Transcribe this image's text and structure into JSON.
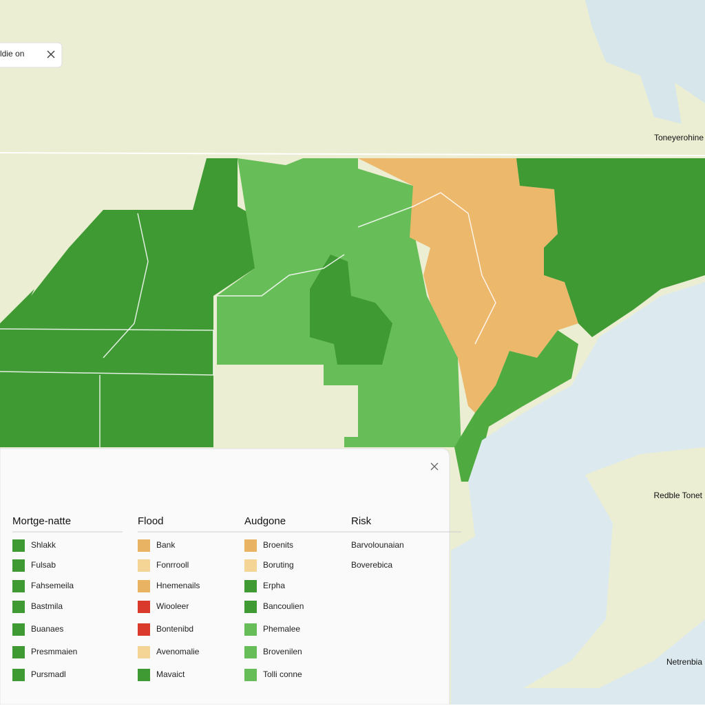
{
  "search_chip": {
    "text": "ldie on"
  },
  "map_labels": [
    "Toneyerohine",
    "Redble Tonet",
    "Netrenbia"
  ],
  "legend": {
    "columns": [
      {
        "title": "Mortge-natte",
        "items": [
          {
            "label": "Shlakk",
            "color": "#3f9a34"
          },
          {
            "label": "Fulsab",
            "color": "#3f9a34"
          },
          {
            "label": "Fahsemeila",
            "color": "#3f9a34"
          },
          {
            "label": "Bastmila",
            "color": "#3f9a34"
          },
          {
            "label": "Buanaes",
            "color": "#3f9a34"
          },
          {
            "label": "Presmmaien",
            "color": "#3f9a34"
          },
          {
            "label": "Pursmadl",
            "color": "#3f9a34"
          }
        ]
      },
      {
        "title": "Flood",
        "items": [
          {
            "label": "Bank",
            "color": "#e8b463"
          },
          {
            "label": "Fonrrooll",
            "color": "#f5d595"
          },
          {
            "label": "Hnemenails",
            "color": "#e8b463"
          },
          {
            "label": "Wiooleer",
            "color": "#d93a2b"
          },
          {
            "label": "Bontenibd",
            "color": "#d93a2b"
          },
          {
            "label": "Avenomalie",
            "color": "#f5d595"
          },
          {
            "label": "Mavaict",
            "color": "#3f9a34"
          }
        ]
      },
      {
        "title": "Audgone",
        "items": [
          {
            "label": "Broenits",
            "color": "#e8b463"
          },
          {
            "label": "Boruting",
            "color": "#f5d595"
          },
          {
            "label": "Erpha",
            "color": "#3f9a34"
          },
          {
            "label": "Bancoulien",
            "color": "#3f9a34"
          },
          {
            "label": "Phemalee",
            "color": "#67bd57"
          },
          {
            "label": "Brovenilen",
            "color": "#67bd57"
          },
          {
            "label": "Tolli conne",
            "color": "#67bd57"
          }
        ]
      },
      {
        "title": "Risk",
        "items": [
          {
            "label": "Barvolounaian"
          },
          {
            "label": "Boverebica"
          }
        ]
      }
    ]
  }
}
